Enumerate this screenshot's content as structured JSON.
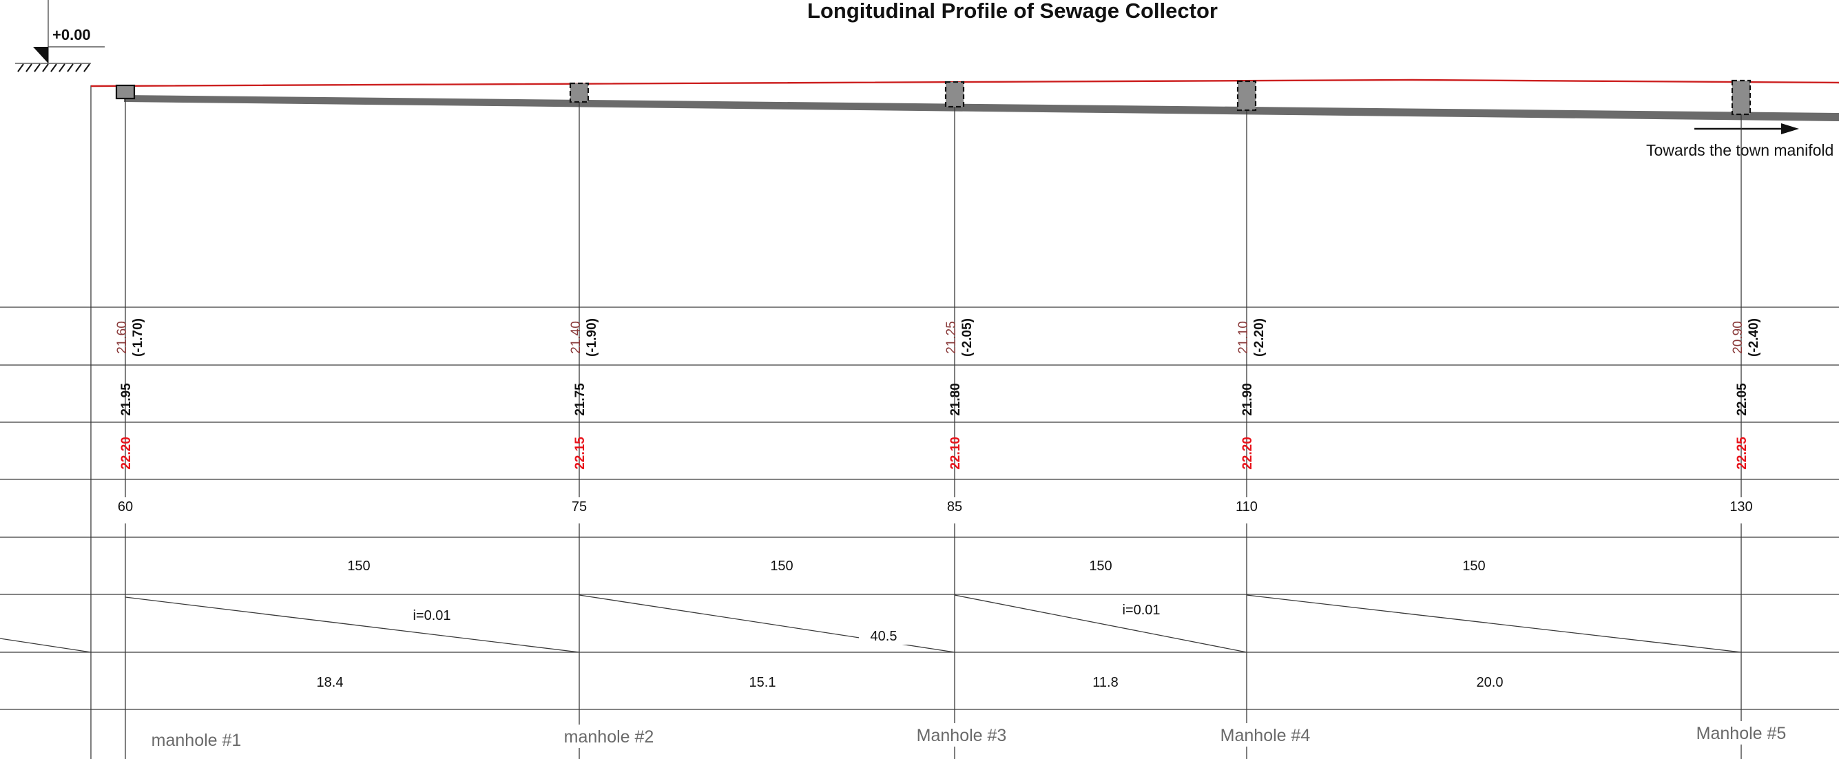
{
  "title": "Longitudinal Profile of Sewage Collector",
  "datum_mark": "+0.00",
  "flow_direction_note": "Towards the town manifold",
  "colors": {
    "ground_line": "#cc1f1f",
    "pipe": "#6b6b6b",
    "manhole_fill": "#8c8c8c",
    "invert_level_text": "#8a3a3a",
    "design_level_text": "#e8121a",
    "manhole_label": "#6a6a6a"
  },
  "profile": {
    "slope_labels": [
      "i=0.01",
      "i=0.01"
    ],
    "left_partial_slope": true
  },
  "manholes": [
    {
      "label": "manhole  #1",
      "invert_level": "21.60",
      "depth": "(-1.70)",
      "natural_ground": "21.95",
      "design_ground": "22.20",
      "station": "60"
    },
    {
      "label": "manhole  #2",
      "invert_level": "21.40",
      "depth": "(-1.90)",
      "natural_ground": "21.75",
      "design_ground": "22.15",
      "station": "75"
    },
    {
      "label": "Manhole #3",
      "invert_level": "21.25",
      "depth": "(-2.05)",
      "natural_ground": "21.80",
      "design_ground": "22.10",
      "station": "85"
    },
    {
      "label": "Manhole #4",
      "invert_level": "21.10",
      "depth": "(-2.20)",
      "natural_ground": "21.90",
      "design_ground": "22.20",
      "station": "110"
    },
    {
      "label": "Manhole  #5",
      "invert_level": "20.90",
      "depth": "(-2.40)",
      "natural_ground": "22.05",
      "design_ground": "22.25",
      "station": "130"
    }
  ],
  "segments": [
    {
      "diameter": "150",
      "length": "18.4",
      "slope_label": "i=0.01"
    },
    {
      "diameter": "150",
      "length": "15.1",
      "slope_label": "40.5"
    },
    {
      "diameter": "150",
      "length": "11.8",
      "slope_label": "i=0.01"
    },
    {
      "diameter": "150",
      "length": "20.0",
      "slope_label": ""
    }
  ]
}
